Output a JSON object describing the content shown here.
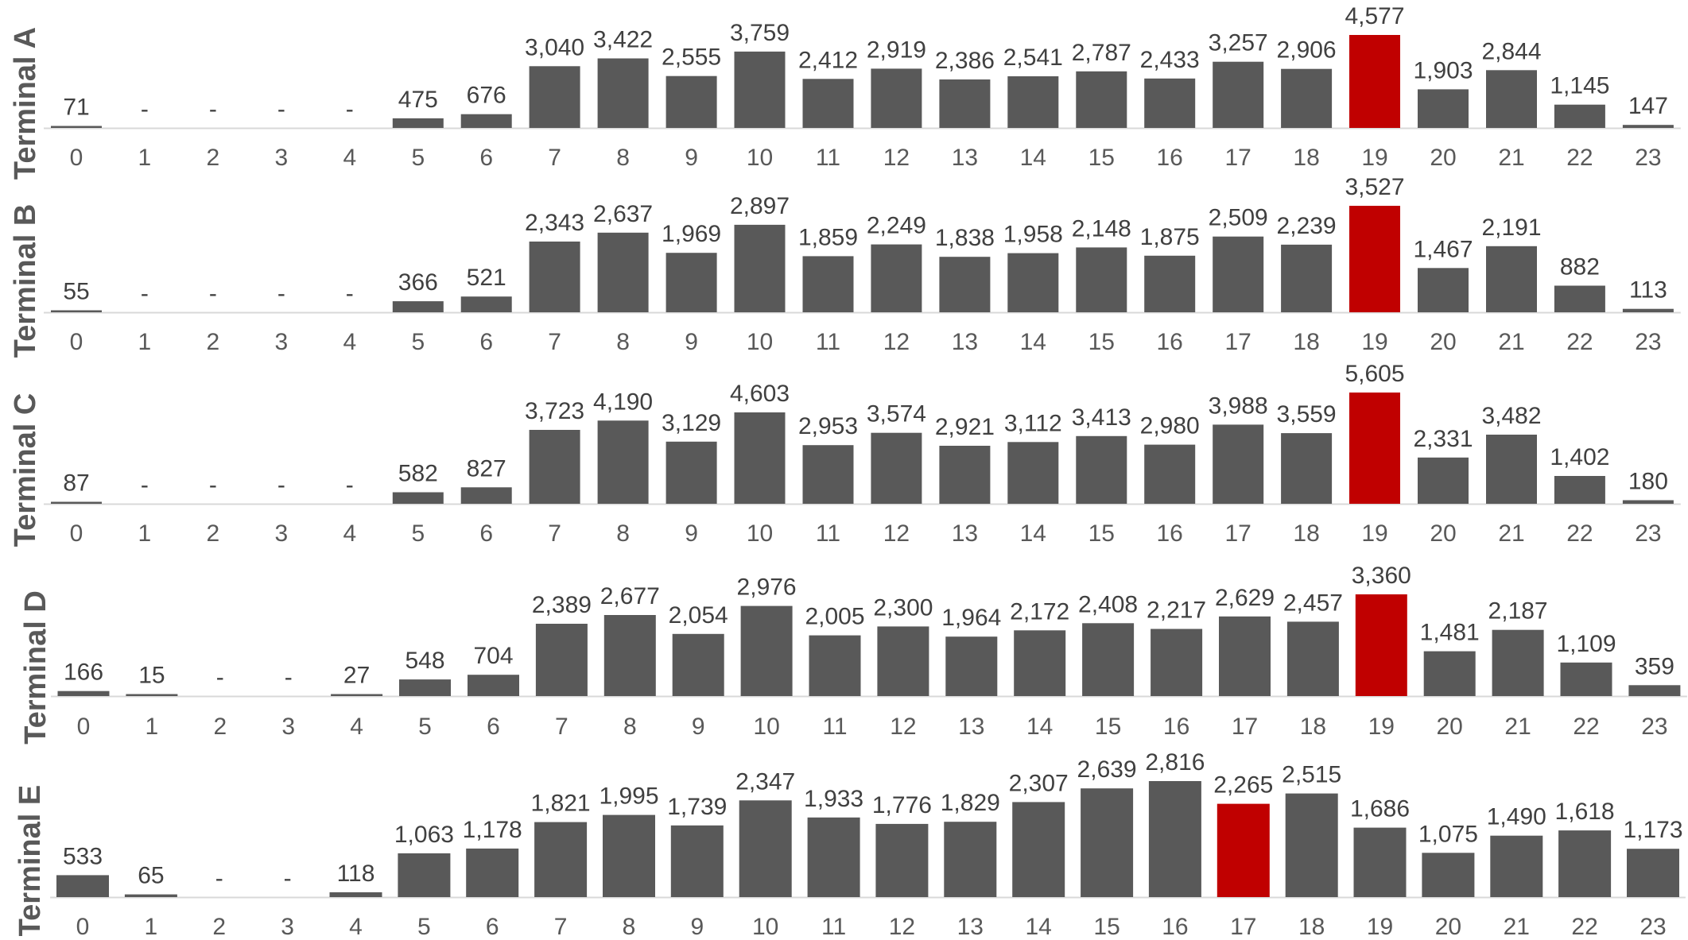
{
  "colors": {
    "bar": "#595959",
    "highlight": "#c00000",
    "axis": "#d9d9d9"
  },
  "chart_data": [
    {
      "type": "bar",
      "title": "Terminal A",
      "categories": [
        "0",
        "1",
        "2",
        "3",
        "4",
        "5",
        "6",
        "7",
        "8",
        "9",
        "10",
        "11",
        "12",
        "13",
        "14",
        "15",
        "16",
        "17",
        "18",
        "19",
        "20",
        "21",
        "22",
        "23"
      ],
      "values": [
        71,
        0,
        0,
        0,
        0,
        475,
        676,
        3040,
        3422,
        2555,
        3759,
        2412,
        2919,
        2386,
        2541,
        2787,
        2433,
        3257,
        2906,
        4577,
        1903,
        2844,
        1145,
        147
      ],
      "labels": [
        "71",
        "-",
        "-",
        "-",
        "-",
        "475",
        "676",
        "3,040",
        "3,422",
        "2,555",
        "3,759",
        "2,412",
        "2,919",
        "2,386",
        "2,541",
        "2,787",
        "2,433",
        "3,257",
        "2,906",
        "4,577",
        "1,903",
        "2,844",
        "1,145",
        "147"
      ],
      "highlight_index": 19
    },
    {
      "type": "bar",
      "title": "Terminal B",
      "categories": [
        "0",
        "1",
        "2",
        "3",
        "4",
        "5",
        "6",
        "7",
        "8",
        "9",
        "10",
        "11",
        "12",
        "13",
        "14",
        "15",
        "16",
        "17",
        "18",
        "19",
        "20",
        "21",
        "22",
        "23"
      ],
      "values": [
        55,
        0,
        0,
        0,
        0,
        366,
        521,
        2343,
        2637,
        1969,
        2897,
        1859,
        2249,
        1838,
        1958,
        2148,
        1875,
        2509,
        2239,
        3527,
        1467,
        2191,
        882,
        113
      ],
      "labels": [
        "55",
        "-",
        "-",
        "-",
        "-",
        "366",
        "521",
        "2,343",
        "2,637",
        "1,969",
        "2,897",
        "1,859",
        "2,249",
        "1,838",
        "1,958",
        "2,148",
        "1,875",
        "2,509",
        "2,239",
        "3,527",
        "1,467",
        "2,191",
        "882",
        "113"
      ],
      "highlight_index": 19
    },
    {
      "type": "bar",
      "title": "Terminal C",
      "categories": [
        "0",
        "1",
        "2",
        "3",
        "4",
        "5",
        "6",
        "7",
        "8",
        "9",
        "10",
        "11",
        "12",
        "13",
        "14",
        "15",
        "16",
        "17",
        "18",
        "19",
        "20",
        "21",
        "22",
        "23"
      ],
      "values": [
        87,
        0,
        0,
        0,
        0,
        582,
        827,
        3723,
        4190,
        3129,
        4603,
        2953,
        3574,
        2921,
        3112,
        3413,
        2980,
        3988,
        3559,
        5605,
        2331,
        3482,
        1402,
        180
      ],
      "labels": [
        "87",
        "-",
        "-",
        "-",
        "-",
        "582",
        "827",
        "3,723",
        "4,190",
        "3,129",
        "4,603",
        "2,953",
        "3,574",
        "2,921",
        "3,112",
        "3,413",
        "2,980",
        "3,988",
        "3,559",
        "5,605",
        "2,331",
        "3,482",
        "1,402",
        "180"
      ],
      "highlight_index": 19
    },
    {
      "type": "bar",
      "title": "Terminal D",
      "categories": [
        "0",
        "1",
        "2",
        "3",
        "4",
        "5",
        "6",
        "7",
        "8",
        "9",
        "10",
        "11",
        "12",
        "13",
        "14",
        "15",
        "16",
        "17",
        "18",
        "19",
        "20",
        "21",
        "22",
        "23"
      ],
      "values": [
        166,
        15,
        0,
        0,
        27,
        548,
        704,
        2389,
        2677,
        2054,
        2976,
        2005,
        2300,
        1964,
        2172,
        2408,
        2217,
        2629,
        2457,
        3360,
        1481,
        2187,
        1109,
        359
      ],
      "labels": [
        "166",
        "15",
        "-",
        "-",
        "27",
        "548",
        "704",
        "2,389",
        "2,677",
        "2,054",
        "2,976",
        "2,005",
        "2,300",
        "1,964",
        "2,172",
        "2,408",
        "2,217",
        "2,629",
        "2,457",
        "3,360",
        "1,481",
        "2,187",
        "1,109",
        "359"
      ],
      "highlight_index": 19
    },
    {
      "type": "bar",
      "title": "Terminal E",
      "categories": [
        "0",
        "1",
        "2",
        "3",
        "4",
        "5",
        "6",
        "7",
        "8",
        "9",
        "10",
        "11",
        "12",
        "13",
        "14",
        "15",
        "16",
        "17",
        "18",
        "19",
        "20",
        "21",
        "22",
        "23"
      ],
      "values": [
        533,
        65,
        0,
        0,
        118,
        1063,
        1178,
        1821,
        1995,
        1739,
        2347,
        1933,
        1776,
        1829,
        2307,
        2639,
        2816,
        2265,
        2515,
        1686,
        1075,
        1490,
        1618,
        1173
      ],
      "labels": [
        "533",
        "65",
        "-",
        "-",
        "118",
        "1,063",
        "1,178",
        "1,821",
        "1,995",
        "1,739",
        "2,347",
        "1,933",
        "1,776",
        "1,829",
        "2,307",
        "2,639",
        "2,816",
        "2,265",
        "2,515",
        "1,686",
        "1,075",
        "1,490",
        "1,618",
        "1,173"
      ],
      "highlight_index": 17
    }
  ]
}
